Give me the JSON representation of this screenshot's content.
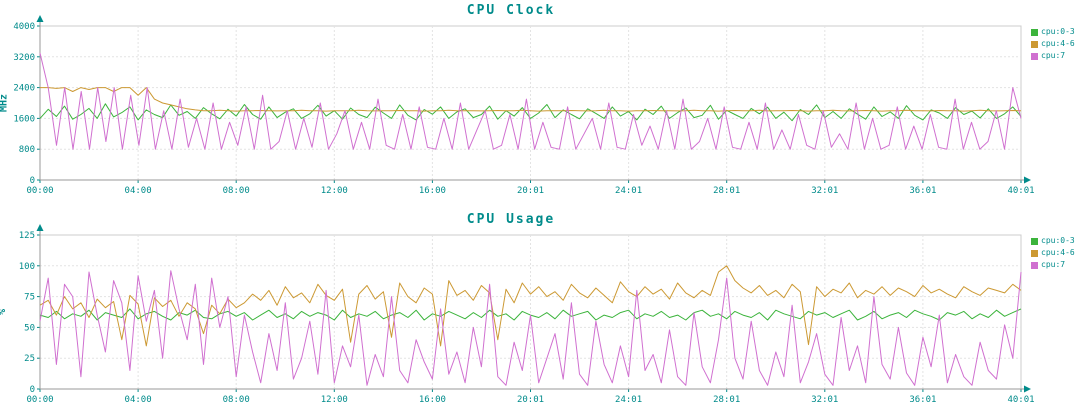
{
  "colors": {
    "title": "#008b8b",
    "axis_text": "#008b8b",
    "grid": "#e3e3e3",
    "border": "#cccccc",
    "axis_line": "#999999",
    "green": "#3cb43c",
    "orange": "#cc9933",
    "magenta": "#d070d0"
  },
  "chart_data": [
    {
      "type": "line",
      "title": "CPU Clock",
      "ylabel": "MHz",
      "ylim": [
        0,
        4000
      ],
      "yticks": [
        0,
        800,
        1600,
        2400,
        3200,
        4000
      ],
      "xticks": [
        "00:00",
        "04:00",
        "08:00",
        "12:00",
        "16:00",
        "20:01",
        "24:01",
        "28:01",
        "32:01",
        "36:01",
        "40:01"
      ],
      "grid": true,
      "legend_position": "right",
      "series": [
        {
          "name": "cpu:0-3",
          "color": "#3cb43c",
          "values": [
            1600,
            1837,
            1650,
            1920,
            1580,
            1700,
            1860,
            1600,
            1980,
            1640,
            1750,
            1900,
            1560,
            1820,
            1700,
            1620,
            1950,
            1680,
            1780,
            1600,
            1880,
            1720,
            1590,
            1840,
            1660,
            1960,
            1700,
            1580,
            1900,
            1620,
            1760,
            1850,
            1600,
            1720,
            1940,
            1660,
            1800,
            1580,
            1870,
            1700,
            1620,
            1890,
            1740,
            1600,
            1950,
            1680,
            1560,
            1830,
            1710,
            1900,
            1600,
            1770,
            1850,
            1620,
            1700,
            1920,
            1580,
            1800,
            1660,
            1880,
            1600,
            1740,
            1960,
            1620,
            1820,
            1700,
            1590,
            1850,
            1730,
            1600,
            1900,
            1660,
            1780,
            1560,
            1840,
            1700,
            1920,
            1600,
            1750,
            1870,
            1620,
            1680,
            1940,
            1580,
            1810,
            1700,
            1600,
            1860,
            1720,
            1890,
            1600,
            1760,
            1540,
            1830,
            1700,
            1950,
            1620,
            1780,
            1600,
            1850,
            1710,
            1580,
            1900,
            1650,
            1770,
            1600,
            1930,
            1680,
            1560,
            1820,
            1740,
            1600,
            1880,
            1700,
            1790,
            1610,
            1850,
            1600,
            1720,
            1900,
            1650
          ]
        },
        {
          "name": "cpu:4-6",
          "color": "#cc9933",
          "values": [
            2400,
            2400,
            2380,
            2400,
            2300,
            2400,
            2350,
            2400,
            2400,
            2300,
            2400,
            2400,
            2200,
            2400,
            2100,
            2000,
            1950,
            1900,
            1850,
            1820,
            1800,
            1800,
            1810,
            1800,
            1790,
            1800,
            1800,
            1805,
            1800,
            1795,
            1800,
            1800,
            1810,
            1800,
            1800,
            1790,
            1800,
            1800,
            1800,
            1810,
            1800,
            1795,
            1800,
            1800,
            1805,
            1800,
            1800,
            1790,
            1800,
            1800,
            1810,
            1800,
            1800,
            1800,
            1795,
            1800,
            1805,
            1800,
            1800,
            1810,
            1800,
            1790,
            1800,
            1800,
            1800,
            1805,
            1800,
            1795,
            1800,
            1810,
            1800,
            1800,
            1790,
            1800,
            1800,
            1805,
            1800,
            1800,
            1795,
            1800,
            1810,
            1800,
            1800,
            1790,
            1800,
            1805,
            1800,
            1800,
            1810,
            1795,
            1800,
            1800,
            1805,
            1800,
            1790,
            1800,
            1800,
            1810,
            1800,
            1795,
            1800,
            1805,
            1800,
            1790,
            1800,
            1800,
            1810,
            1800,
            1800,
            1795,
            1805,
            1800,
            1800,
            1790,
            1800,
            1810,
            1800,
            1795,
            1800,
            1805,
            1800
          ]
        },
        {
          "name": "cpu:7",
          "color": "#d070d0",
          "values": [
            3300,
            2400,
            900,
            2400,
            800,
            2300,
            800,
            2400,
            1000,
            2400,
            800,
            2200,
            900,
            2400,
            800,
            1800,
            800,
            2100,
            850,
            1600,
            800,
            2000,
            800,
            1500,
            900,
            1900,
            800,
            2200,
            800,
            1000,
            1800,
            800,
            1600,
            850,
            2000,
            800,
            1200,
            1800,
            800,
            1500,
            800,
            2100,
            900,
            800,
            1700,
            800,
            1900,
            850,
            800,
            1600,
            800,
            2000,
            800,
            1300,
            1800,
            800,
            900,
            1700,
            800,
            2100,
            800,
            1500,
            850,
            800,
            1900,
            800,
            1200,
            1600,
            800,
            2000,
            850,
            800,
            1700,
            900,
            1400,
            800,
            1800,
            800,
            2100,
            800,
            1000,
            1600,
            800,
            1900,
            850,
            800,
            1500,
            800,
            2000,
            800,
            1300,
            800,
            1700,
            900,
            800,
            1800,
            850,
            1200,
            800,
            2000,
            800,
            1600,
            800,
            900,
            1900,
            800,
            1400,
            800,
            1700,
            850,
            800,
            2100,
            800,
            1500,
            800,
            1000,
            1800,
            800,
            2400,
            1600
          ]
        }
      ]
    },
    {
      "type": "line",
      "title": "CPU Usage",
      "ylabel": "%",
      "ylim": [
        0,
        125
      ],
      "yticks": [
        0,
        25,
        50,
        75,
        100,
        125
      ],
      "xticks": [
        "00:00",
        "04:00",
        "08:00",
        "12:00",
        "16:00",
        "20:01",
        "24:01",
        "28:01",
        "32:01",
        "36:01",
        "40:01"
      ],
      "grid": true,
      "legend_position": "right",
      "series": [
        {
          "name": "cpu:0-3",
          "color": "#3cb43c",
          "values": [
            60,
            58,
            63,
            57,
            61,
            59,
            64,
            56,
            62,
            60,
            58,
            65,
            57,
            61,
            63,
            59,
            56,
            62,
            60,
            64,
            58,
            57,
            61,
            63,
            59,
            62,
            56,
            60,
            64,
            58,
            61,
            57,
            63,
            59,
            62,
            60,
            56,
            64,
            58,
            61,
            59,
            63,
            57,
            60,
            62,
            58,
            64,
            56,
            61,
            59,
            63,
            60,
            57,
            62,
            58,
            64,
            59,
            61,
            56,
            63,
            60,
            58,
            62,
            57,
            64,
            59,
            61,
            63,
            56,
            60,
            58,
            62,
            64,
            57,
            61,
            59,
            63,
            58,
            60,
            56,
            62,
            64,
            59,
            61,
            57,
            63,
            60,
            58,
            62,
            56,
            64,
            61,
            59,
            57,
            63,
            60,
            62,
            58,
            61,
            64,
            56,
            59,
            63,
            57,
            60,
            62,
            58,
            64,
            61,
            59,
            56,
            62,
            60,
            63,
            57,
            61,
            58,
            64,
            59,
            62,
            65
          ]
        },
        {
          "name": "cpu:4-6",
          "color": "#cc9933",
          "values": [
            68,
            72,
            60,
            75,
            65,
            70,
            58,
            73,
            66,
            71,
            40,
            76,
            69,
            35,
            74,
            67,
            72,
            59,
            70,
            65,
            45,
            68,
            61,
            73,
            66,
            70,
            77,
            72,
            80,
            68,
            83,
            74,
            78,
            70,
            85,
            76,
            72,
            81,
            38,
            77,
            84,
            73,
            79,
            42,
            86,
            75,
            70,
            82,
            77,
            35,
            88,
            76,
            80,
            72,
            84,
            78,
            40,
            81,
            70,
            86,
            77,
            83,
            75,
            79,
            72,
            85,
            78,
            74,
            82,
            76,
            70,
            87,
            79,
            75,
            83,
            77,
            81,
            73,
            86,
            78,
            74,
            80,
            76,
            95,
            100,
            88,
            82,
            78,
            84,
            76,
            80,
            74,
            85,
            79,
            36,
            83,
            75,
            81,
            78,
            86,
            74,
            80,
            77,
            83,
            76,
            82,
            79,
            75,
            84,
            78,
            81,
            77,
            74,
            83,
            79,
            76,
            82,
            80,
            78,
            85,
            80
          ]
        },
        {
          "name": "cpu:7",
          "color": "#d070d0",
          "values": [
            55,
            90,
            20,
            85,
            75,
            10,
            95,
            60,
            30,
            88,
            70,
            15,
            92,
            55,
            80,
            25,
            96,
            65,
            40,
            85,
            20,
            90,
            50,
            75,
            10,
            60,
            30,
            5,
            45,
            15,
            70,
            8,
            25,
            55,
            12,
            80,
            5,
            35,
            18,
            60,
            3,
            28,
            10,
            75,
            15,
            5,
            40,
            22,
            8,
            65,
            12,
            30,
            5,
            50,
            18,
            85,
            10,
            3,
            38,
            15,
            60,
            5,
            25,
            45,
            8,
            70,
            12,
            3,
            55,
            20,
            5,
            35,
            10,
            80,
            15,
            28,
            5,
            48,
            10,
            3,
            62,
            18,
            5,
            40,
            90,
            25,
            8,
            55,
            15,
            3,
            30,
            10,
            68,
            5,
            22,
            45,
            12,
            3,
            58,
            15,
            35,
            5,
            75,
            20,
            8,
            50,
            13,
            3,
            42,
            18,
            60,
            5,
            28,
            10,
            3,
            38,
            15,
            8,
            52,
            25,
            95
          ]
        }
      ]
    }
  ]
}
